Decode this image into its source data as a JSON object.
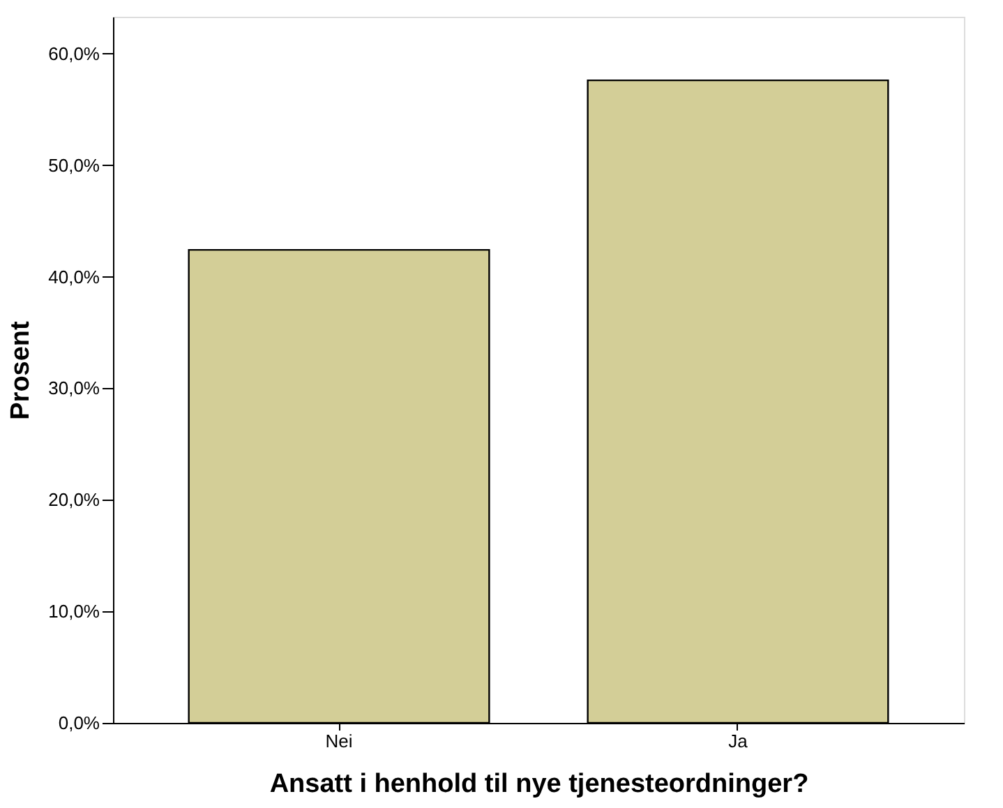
{
  "chart_data": {
    "type": "bar",
    "xlabel": "Ansatt i henhold til nye tjenesteordninger?",
    "ylabel": "Prosent",
    "categories": [
      "Nei",
      "Ja"
    ],
    "series": [
      {
        "color": "#d3ce97",
        "values": [
          42.4,
          57.6
        ]
      }
    ],
    "ylim": [
      0,
      63.3
    ],
    "yticks": [
      {
        "value": 0,
        "label": "0,0%"
      },
      {
        "value": 10,
        "label": "10,0%"
      },
      {
        "value": 20,
        "label": "20,0%"
      },
      {
        "value": 30,
        "label": "30,0%"
      },
      {
        "value": 40,
        "label": "40,0%"
      },
      {
        "value": 50,
        "label": "50,0%"
      },
      {
        "value": 60,
        "label": "60,0%"
      }
    ],
    "grid": false,
    "legend": false
  }
}
